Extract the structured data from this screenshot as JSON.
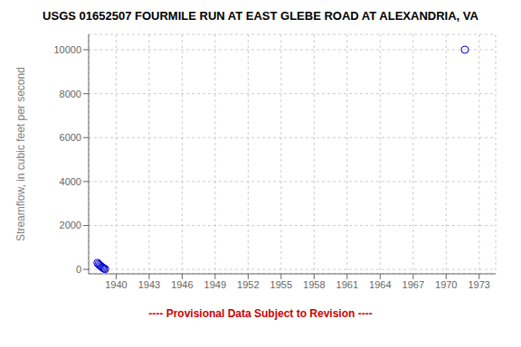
{
  "chart_data": {
    "type": "scatter",
    "title": "USGS 01652507 FOURMILE RUN AT EAST GLEBE ROAD AT ALEXANDRIA, VA",
    "ylabel": "Streamflow, in cubic feet per second",
    "annotations": [
      {
        "text": "---- Provisional Data Subject to Revision ----",
        "color": "#cc0000"
      }
    ],
    "x": [
      1938.3,
      1938.4,
      1938.5,
      1938.6,
      1938.7,
      1938.8,
      1938.9,
      1939.0,
      1971.7
    ],
    "values": [
      300,
      240,
      190,
      150,
      110,
      70,
      40,
      15,
      10000
    ],
    "color": "#0000cc",
    "marker": "circle",
    "xlim": [
      1937.5,
      1974.5
    ],
    "ylim": [
      -200,
      10700
    ],
    "xticks": [
      1940,
      1943,
      1946,
      1949,
      1952,
      1955,
      1958,
      1961,
      1964,
      1967,
      1970,
      1973
    ],
    "yticks": [
      0,
      2000,
      4000,
      6000,
      8000,
      10000
    ],
    "grid": true
  }
}
